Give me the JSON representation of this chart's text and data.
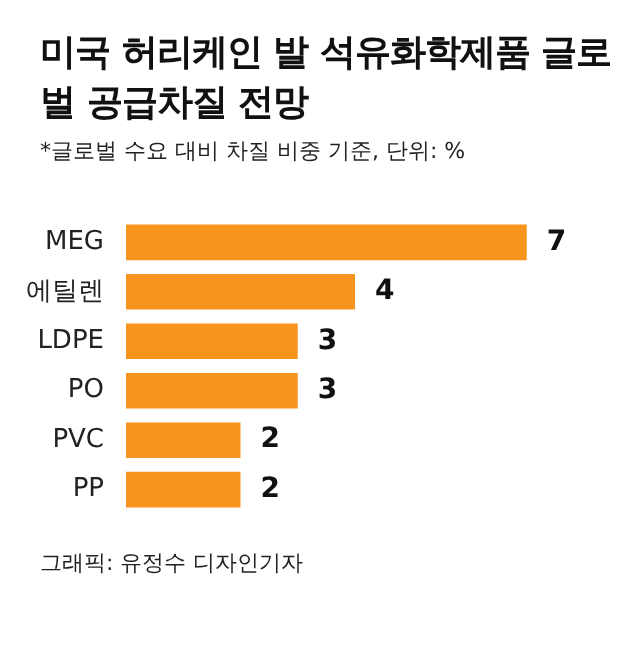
{
  "chart_data": {
    "type": "bar",
    "orientation": "horizontal",
    "title": "미국 허리케인 발 석유화학제품 글로벌 공급차질 전망",
    "subtitle": "*글로벌 수요 대비 차질 비중 기준, 단위: %",
    "categories": [
      "MEG",
      "에틸렌",
      "LDPE",
      "PO",
      "PVC",
      "PP"
    ],
    "values": [
      7,
      4,
      3,
      3,
      2,
      2
    ],
    "color": "#f7941d",
    "data_labels": true,
    "annotations": [
      "그래픽: 유정수 디자인기자"
    ]
  }
}
